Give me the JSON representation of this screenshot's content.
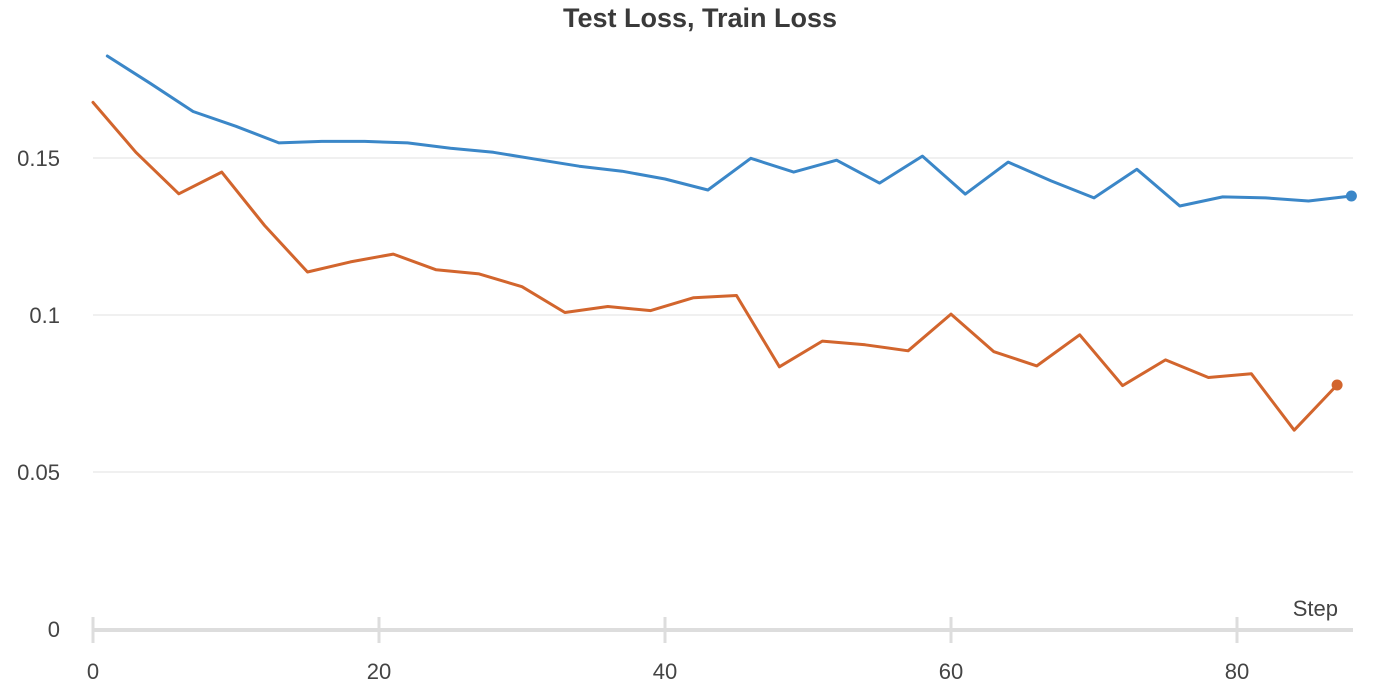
{
  "chart_data": {
    "type": "line",
    "title": "Test Loss, Train Loss",
    "xlabel": "Step",
    "ylabel": "",
    "xlim": [
      0,
      88
    ],
    "ylim": [
      0,
      0.18
    ],
    "x_ticks": [
      0,
      20,
      40,
      60,
      80
    ],
    "y_ticks": [
      0,
      0.05,
      0.1,
      0.15
    ],
    "x_tick_labels": [
      "0",
      "20",
      "40",
      "60",
      "80"
    ],
    "y_tick_labels": [
      "0",
      "0.05",
      "0.1",
      "0.15"
    ],
    "grid": true,
    "legend": "none",
    "series": [
      {
        "color": "#3b87c8",
        "x": [
          1,
          4,
          7,
          10,
          13,
          16,
          19,
          22,
          25,
          28,
          31,
          34,
          37,
          40,
          43,
          46,
          49,
          52,
          55,
          58,
          61,
          64,
          67,
          70,
          73,
          76,
          79,
          82,
          85,
          88
        ],
        "y": [
          0.1825,
          0.1738,
          0.1648,
          0.1601,
          0.1548,
          0.1553,
          0.1553,
          0.1548,
          0.1531,
          0.1518,
          0.1496,
          0.1474,
          0.1458,
          0.1433,
          0.1398,
          0.1499,
          0.1455,
          0.1493,
          0.142,
          0.1506,
          0.1385,
          0.1487,
          0.1427,
          0.1373,
          0.1464,
          0.1347,
          0.1376,
          0.1373,
          0.1363,
          0.1379
        ]
      },
      {
        "color": "#d2652d",
        "x": [
          0,
          3,
          6,
          9,
          12,
          15,
          18,
          21,
          24,
          27,
          30,
          33,
          36,
          39,
          42,
          45,
          48,
          51,
          54,
          57,
          60,
          63,
          66,
          69,
          72,
          75,
          78,
          81,
          84,
          87
        ],
        "y": [
          0.1677,
          0.1518,
          0.1386,
          0.1455,
          0.1285,
          0.1137,
          0.1169,
          0.1194,
          0.1144,
          0.1131,
          0.109,
          0.1008,
          0.1027,
          0.1014,
          0.1055,
          0.1062,
          0.0835,
          0.0917,
          0.0905,
          0.0886,
          0.1003,
          0.0883,
          0.0838,
          0.0937,
          0.0775,
          0.0857,
          0.0801,
          0.0813,
          0.0633,
          0.0777
        ]
      }
    ]
  }
}
